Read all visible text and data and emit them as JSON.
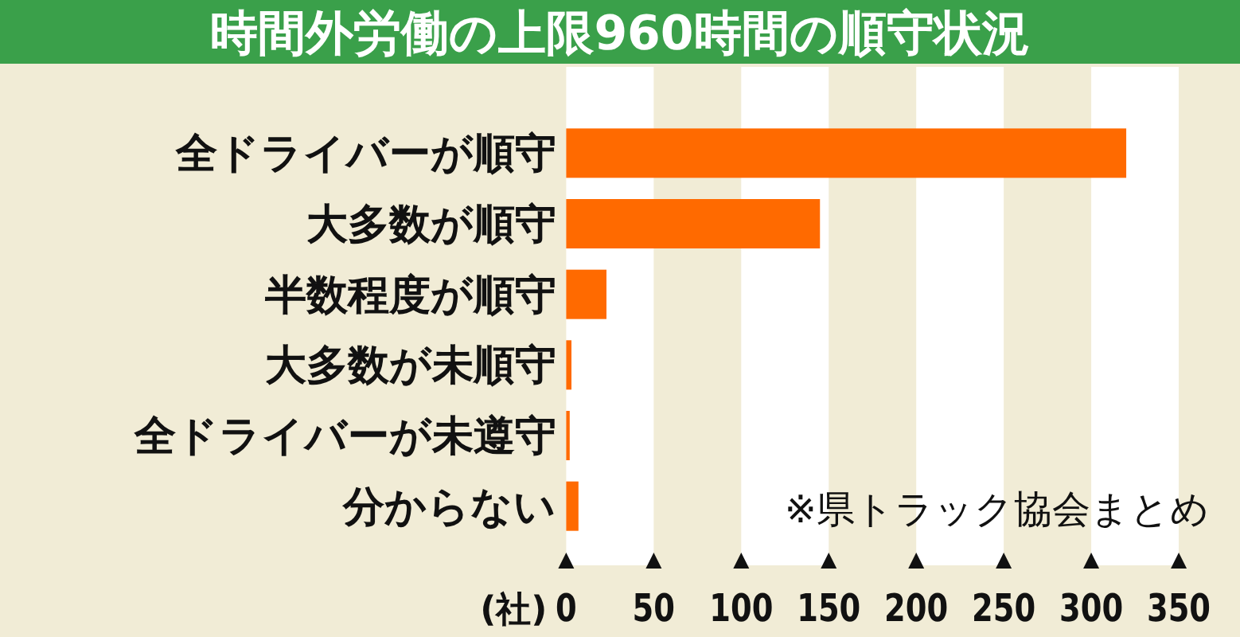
{
  "chart_data": {
    "type": "bar",
    "orientation": "horizontal",
    "title": "時間外労働の上限960時間の順守状況",
    "categories": [
      "全ドライバーが順守",
      "大多数が順守",
      "半数程度が順守",
      "大多数が未順守",
      "全ドライバーが未遵守",
      "分からない"
    ],
    "values": [
      320,
      145,
      23,
      3,
      2,
      7
    ],
    "color": "#ff6a00",
    "xlabel": "(社)",
    "xlim": [
      0,
      385
    ],
    "xticks": [
      0,
      50,
      100,
      150,
      200,
      250,
      300,
      350
    ],
    "bands": [
      {
        "axis": "x",
        "from": 50,
        "to": 100,
        "color": "#f1ecd6"
      },
      {
        "axis": "x",
        "from": 150,
        "to": 200,
        "color": "#f1ecd6"
      },
      {
        "axis": "x",
        "from": 250,
        "to": 300,
        "color": "#f1ecd6"
      },
      {
        "axis": "x",
        "from": 350,
        "to": 385,
        "color": "#f1ecd6"
      }
    ],
    "annotations": [
      "※県トラック協会まとめ"
    ]
  }
}
